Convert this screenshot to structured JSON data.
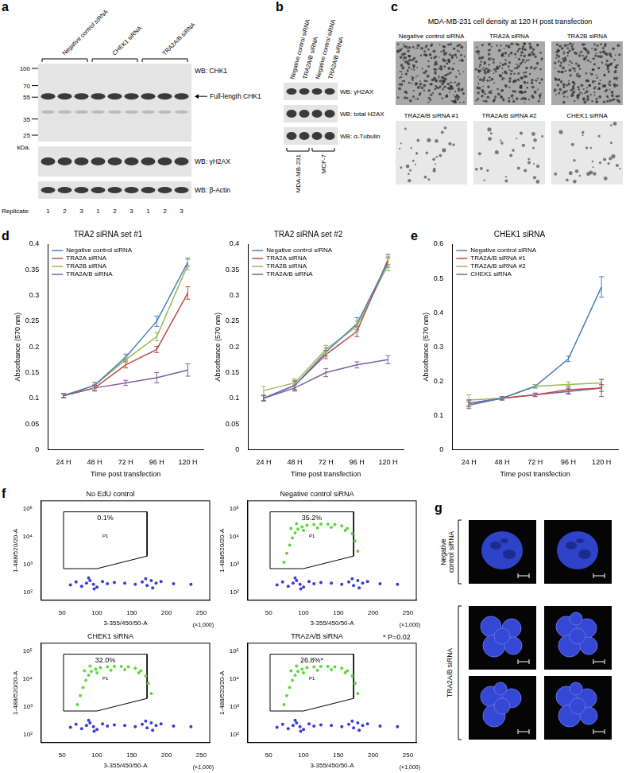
{
  "figure": {
    "a": {
      "letter": "a",
      "groups": [
        "Negative control siRNA",
        "CHEK1 siRNA",
        "TRA2A/B siRNA"
      ],
      "markers": [
        100,
        70,
        55,
        35,
        25
      ],
      "marker_unit": "kDa.",
      "blots": [
        "WB: CHK1",
        "WB: γH2AX",
        "WB: β-Actin"
      ],
      "arrow_label": "Full-length CHK1",
      "replicate_label": "Replicate:",
      "replicates": [
        1,
        2,
        3,
        1,
        2,
        3,
        1,
        2,
        3
      ]
    },
    "b": {
      "letter": "b",
      "lanes": [
        "Negative control siRNA",
        "TRA2A/B siRNA",
        "Negative control siRNA",
        "TRA2A/B siRNA"
      ],
      "blots": [
        "WB: γH2AX",
        "WB: total H2AX",
        "WB: α-Tubulin"
      ],
      "cell_lines": [
        "MDA-MB-231",
        "MCF-7"
      ]
    },
    "c": {
      "letter": "c",
      "title": "MDA-MB-231 cell density at 120 H post transfection",
      "tiles": [
        "Negative control siRNA",
        "TRA2A siRNA",
        "TRA2B siRNA",
        "TRA2A/B siRNA #1",
        "TRA2A/B siRNA #2",
        "CHEK1 siRNA"
      ]
    },
    "d": {
      "letter": "d"
    },
    "e": {
      "letter": "e"
    },
    "f": {
      "letter": "f",
      "note": "* P=0.02"
    },
    "g": {
      "letter": "g",
      "groups": [
        {
          "label": "Negative control siRNA",
          "images": 2
        },
        {
          "label": "TRA2A/B siRNA",
          "images": 4
        }
      ]
    }
  },
  "chart_data": [
    {
      "type": "line",
      "title": "TRA2 siRNA set #1",
      "xlabel": "Time post transfection",
      "ylabel": "Absorbance (570 nm)",
      "categories": [
        "24 H",
        "48 H",
        "72 H",
        "96 H",
        "120 H"
      ],
      "ylim": [
        0,
        0.4
      ],
      "yticks": [
        0,
        0.05,
        0.1,
        0.15,
        0.2,
        0.25,
        0.3,
        0.35,
        0.4
      ],
      "grid": false,
      "legend": "upper left",
      "series": [
        {
          "name": "Negative control siRNA",
          "color": "#4a7ebb",
          "values": [
            0.105,
            0.125,
            0.18,
            0.25,
            0.365
          ],
          "errors": [
            0.004,
            0.006,
            0.006,
            0.01,
            0.008
          ]
        },
        {
          "name": "TRA2A siRNA",
          "color": "#be4b48",
          "values": [
            0.105,
            0.12,
            0.165,
            0.195,
            0.305
          ],
          "errors": [
            0.004,
            0.005,
            0.006,
            0.006,
            0.012
          ]
        },
        {
          "name": "TRA2B siRNA",
          "color": "#98b954",
          "values": [
            0.105,
            0.125,
            0.175,
            0.22,
            0.36
          ],
          "errors": [
            0.004,
            0.006,
            0.005,
            0.008,
            0.01
          ]
        },
        {
          "name": "TRA2A/B siRNA",
          "color": "#7d60a0",
          "values": [
            0.105,
            0.12,
            0.13,
            0.14,
            0.155
          ],
          "errors": [
            0.004,
            0.006,
            0.005,
            0.01,
            0.012
          ]
        }
      ]
    },
    {
      "type": "line",
      "title": "TRA2 siRNA set #2",
      "xlabel": "Time post transfection",
      "ylabel": "Absorbance (570 nm)",
      "categories": [
        "24 H",
        "48 H",
        "72 H",
        "96 H",
        "120 H"
      ],
      "ylim": [
        0,
        0.4
      ],
      "yticks": [
        0,
        0.05,
        0.1,
        0.15,
        0.2,
        0.25,
        0.3,
        0.35,
        0.4
      ],
      "grid": false,
      "legend": "upper left",
      "series": [
        {
          "name": "Negative control siRNA",
          "color": "#4a7ebb",
          "values": [
            0.1,
            0.125,
            0.19,
            0.245,
            0.365
          ],
          "errors": [
            0.005,
            0.01,
            0.008,
            0.012,
            0.01
          ]
        },
        {
          "name": "TRA2A siRNA",
          "color": "#be4b48",
          "values": [
            0.1,
            0.125,
            0.185,
            0.23,
            0.37
          ],
          "errors": [
            0.005,
            0.008,
            0.008,
            0.01,
            0.01
          ]
        },
        {
          "name": "TRA2B siRNA",
          "color": "#98b954",
          "values": [
            0.115,
            0.13,
            0.195,
            0.24,
            0.36
          ],
          "errors": [
            0.008,
            0.008,
            0.008,
            0.01,
            0.012
          ]
        },
        {
          "name": "TRA2A/B siRNA",
          "color": "#7d60a0",
          "values": [
            0.1,
            0.12,
            0.15,
            0.165,
            0.175
          ],
          "errors": [
            0.005,
            0.006,
            0.008,
            0.006,
            0.008
          ]
        }
      ]
    },
    {
      "type": "line",
      "title": "CHEK1 siRNA",
      "xlabel": "Time post transfection",
      "ylabel": "Absorbance (570 nm)",
      "categories": [
        "24 H",
        "48 H",
        "72 H",
        "96 H",
        "120 H"
      ],
      "ylim": [
        0,
        0.6
      ],
      "yticks": [
        0,
        0.1,
        0.2,
        0.3,
        0.4,
        0.5,
        0.6
      ],
      "grid": false,
      "legend": "upper left",
      "series": [
        {
          "name": "Negative control siRNA",
          "color": "#4a7ebb",
          "values": [
            0.135,
            0.15,
            0.185,
            0.265,
            0.475
          ],
          "errors": [
            0.01,
            0.005,
            0.005,
            0.008,
            0.03
          ]
        },
        {
          "name": "TRA2A/B siRNA #1",
          "color": "#be4b48",
          "values": [
            0.135,
            0.15,
            0.16,
            0.175,
            0.18
          ],
          "errors": [
            0.01,
            0.005,
            0.005,
            0.01,
            0.01
          ]
        },
        {
          "name": "TRA2A/B siRNA #2",
          "color": "#98b954",
          "values": [
            0.145,
            0.15,
            0.185,
            0.19,
            0.195
          ],
          "errors": [
            0.015,
            0.005,
            0.005,
            0.008,
            0.01
          ]
        },
        {
          "name": "CHEK1 siRNA",
          "color": "#7d60a0",
          "values": [
            0.13,
            0.15,
            0.16,
            0.17,
            0.18
          ],
          "errors": [
            0.01,
            0.005,
            0.005,
            0.008,
            0.025
          ]
        }
      ]
    },
    {
      "type": "scatter",
      "title": "No EdU control",
      "xlabel": "3-355/450/50-A",
      "ylabel": "1-488/520/20-A",
      "annotations": [
        "(×1,000)"
      ],
      "xlim": [
        20,
        262
      ],
      "xticks": [
        50,
        100,
        150,
        200,
        250
      ],
      "ylim": [
        50,
        200000
      ],
      "yticks": [
        {
          "value": 100,
          "label": "10²"
        },
        {
          "value": 1000,
          "label": "10³"
        },
        {
          "value": 10000,
          "label": "10⁴"
        },
        {
          "value": 100000,
          "label": "10⁵"
        }
      ],
      "log": "y",
      "grid": false,
      "gate": {
        "name": "P1",
        "label": "0.1%",
        "x": [
          52,
          172,
          172,
          100,
          52,
          52
        ],
        "y": [
          80000,
          80000,
          2000,
          700,
          700,
          80000
        ]
      },
      "series": [
        {
          "color": "#3b3bd6",
          "x": [
            62,
            70,
            78,
            85,
            90,
            95,
            100,
            108,
            115,
            125,
            140,
            155,
            165,
            172,
            178,
            185,
            192,
            210,
            235,
            88,
            96,
            170,
            180
          ],
          "y": [
            180,
            230,
            160,
            210,
            260,
            190,
            150,
            240,
            200,
            220,
            210,
            190,
            230,
            170,
            260,
            210,
            240,
            200,
            190,
            320,
            130,
            300,
            140
          ]
        }
      ]
    },
    {
      "type": "scatter",
      "title": "Negative control siRNA",
      "xlabel": "3-355/450/50-A",
      "ylabel": "1-488/520/20-A",
      "annotations": [
        "(×1,000)"
      ],
      "xlim": [
        20,
        262
      ],
      "xticks": [
        50,
        100,
        150,
        200,
        250
      ],
      "ylim": [
        50,
        200000
      ],
      "yticks": [
        {
          "value": 100,
          "label": "10²"
        },
        {
          "value": 1000,
          "label": "10³"
        },
        {
          "value": 10000,
          "label": "10⁴"
        },
        {
          "value": 100000,
          "label": "10⁵"
        }
      ],
      "log": "y",
      "grid": false,
      "gate": {
        "name": "P1",
        "label": "35.2%",
        "x": [
          52,
          172,
          172,
          100,
          52,
          52
        ],
        "y": [
          80000,
          80000,
          2000,
          700,
          700,
          80000
        ]
      },
      "series": [
        {
          "color": "#3b3bd6",
          "x": [
            62,
            70,
            78,
            85,
            90,
            95,
            100,
            108,
            115,
            125,
            140,
            155,
            165,
            172,
            178,
            185,
            192,
            210,
            235,
            88,
            96,
            170,
            180
          ],
          "y": [
            180,
            230,
            160,
            210,
            260,
            190,
            150,
            240,
            200,
            220,
            210,
            190,
            230,
            170,
            260,
            210,
            240,
            200,
            190,
            320,
            130,
            300,
            140
          ]
        },
        {
          "color": "#5fd640",
          "x": [
            72,
            76,
            80,
            84,
            88,
            92,
            98,
            105,
            115,
            125,
            135,
            145,
            155,
            163,
            170,
            174,
            178,
            100,
            120,
            140,
            160,
            90,
            82
          ],
          "y": [
            1200,
            2500,
            5000,
            9000,
            14000,
            19000,
            23000,
            26000,
            28000,
            29000,
            29000,
            28000,
            25000,
            20000,
            13000,
            7000,
            3000,
            17000,
            21000,
            22000,
            17000,
            30000,
            20000
          ]
        }
      ]
    },
    {
      "type": "scatter",
      "title": "CHEK1 siRNA",
      "xlabel": "3-355/450/50-A",
      "ylabel": "1-488/520/20-A",
      "annotations": [
        "(×1,000)"
      ],
      "xlim": [
        20,
        262
      ],
      "xticks": [
        50,
        100,
        150,
        200,
        250
      ],
      "ylim": [
        50,
        200000
      ],
      "yticks": [
        {
          "value": 100,
          "label": "10²"
        },
        {
          "value": 1000,
          "label": "10³"
        },
        {
          "value": 10000,
          "label": "10⁴"
        },
        {
          "value": 100000,
          "label": "10⁵"
        }
      ],
      "log": "y",
      "grid": false,
      "gate": {
        "name": "P1",
        "label": "32.0%",
        "x": [
          52,
          172,
          172,
          100,
          52,
          52
        ],
        "y": [
          80000,
          80000,
          2000,
          700,
          700,
          80000
        ]
      },
      "series": [
        {
          "color": "#3b3bd6",
          "x": [
            62,
            70,
            78,
            85,
            90,
            95,
            100,
            108,
            115,
            125,
            140,
            155,
            165,
            172,
            178,
            185,
            192,
            210,
            235,
            88,
            96,
            170,
            180
          ],
          "y": [
            180,
            230,
            160,
            210,
            260,
            190,
            150,
            240,
            200,
            220,
            210,
            190,
            230,
            170,
            260,
            210,
            240,
            200,
            190,
            320,
            130,
            300,
            140
          ]
        },
        {
          "color": "#5fd640",
          "x": [
            72,
            76,
            80,
            84,
            88,
            92,
            98,
            105,
            115,
            125,
            135,
            145,
            155,
            163,
            170,
            174,
            178,
            100,
            120,
            140,
            160,
            90,
            82
          ],
          "y": [
            1200,
            2500,
            5000,
            9000,
            14000,
            19000,
            23000,
            26000,
            28000,
            29000,
            29000,
            28000,
            25000,
            20000,
            13000,
            7000,
            3000,
            17000,
            21000,
            22000,
            17000,
            30000,
            20000
          ]
        }
      ]
    },
    {
      "type": "scatter",
      "title": "TRA2A/B siRNA",
      "xlabel": "3-355/450/50-A",
      "ylabel": "1-488/520/20-A",
      "annotations": [
        "(×1,000)"
      ],
      "xlim": [
        20,
        262
      ],
      "xticks": [
        50,
        100,
        150,
        200,
        250
      ],
      "ylim": [
        50,
        200000
      ],
      "yticks": [
        {
          "value": 100,
          "label": "10²"
        },
        {
          "value": 1000,
          "label": "10³"
        },
        {
          "value": 10000,
          "label": "10⁴"
        },
        {
          "value": 100000,
          "label": "10⁵"
        }
      ],
      "log": "y",
      "grid": false,
      "gate": {
        "name": "P1",
        "label": "26.8%*",
        "x": [
          52,
          172,
          172,
          100,
          52,
          52
        ],
        "y": [
          80000,
          80000,
          2000,
          700,
          700,
          80000
        ]
      },
      "series": [
        {
          "color": "#3b3bd6",
          "x": [
            62,
            70,
            78,
            85,
            90,
            95,
            100,
            108,
            115,
            125,
            140,
            155,
            165,
            172,
            178,
            185,
            192,
            210,
            235,
            88,
            96,
            170,
            180
          ],
          "y": [
            180,
            230,
            160,
            210,
            260,
            190,
            150,
            240,
            200,
            220,
            210,
            190,
            230,
            170,
            260,
            210,
            240,
            200,
            190,
            320,
            130,
            300,
            140
          ]
        },
        {
          "color": "#5fd640",
          "x": [
            72,
            76,
            80,
            84,
            88,
            92,
            98,
            105,
            115,
            125,
            135,
            145,
            155,
            163,
            170,
            174,
            178,
            100,
            120,
            140,
            160,
            90,
            82
          ],
          "y": [
            1200,
            2500,
            5000,
            9000,
            14000,
            19000,
            23000,
            26000,
            28000,
            29000,
            29000,
            28000,
            25000,
            20000,
            13000,
            7000,
            3000,
            17000,
            21000,
            22000,
            17000,
            30000,
            20000
          ]
        }
      ]
    }
  ]
}
